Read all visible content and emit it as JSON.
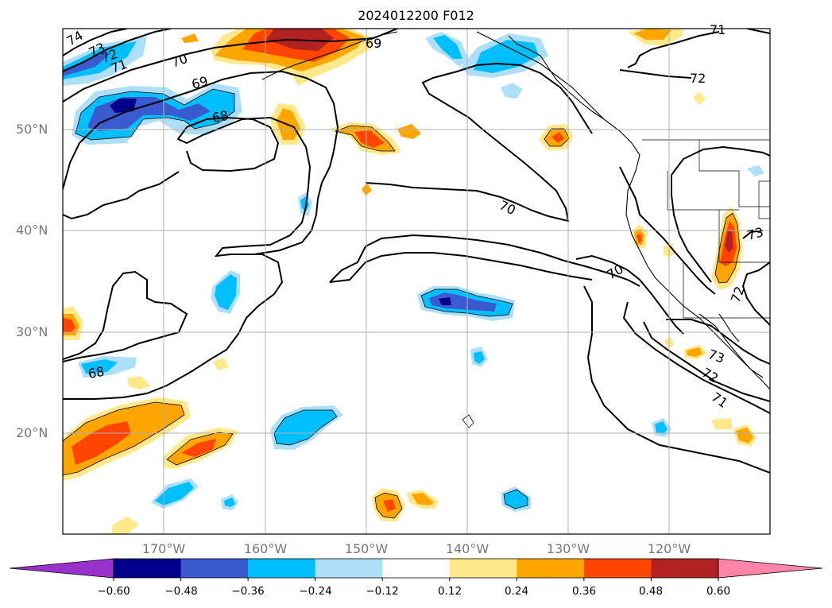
{
  "title": "2024012200 F012",
  "latitude_labels": [
    "50°N",
    "40°N",
    "30°N",
    "20°N"
  ],
  "longitude_labels": [
    "170°W",
    "160°W",
    "150°W",
    "140°W",
    "130°W",
    "120°W"
  ],
  "contour_labels": [
    "74",
    "73",
    "72",
    "71",
    "70",
    "69",
    "68",
    "69",
    "71",
    "72",
    "70",
    "70",
    "68",
    "73",
    "72",
    "73",
    "72",
    "71"
  ],
  "colorbar": {
    "ticks": [
      "−0.60",
      "−0.48",
      "−0.36",
      "−0.24",
      "−0.12",
      "0.12",
      "0.24",
      "0.36",
      "0.48",
      "0.60"
    ],
    "colors": [
      "#9932cc",
      "#00008b",
      "#3a5bd0",
      "#00bfff",
      "#ade0f8",
      "#ffffff",
      "#ffe88a",
      "#ffa500",
      "#ff4500",
      "#b22222",
      "#ff85a8"
    ]
  },
  "anomaly_colors": {
    "neg_strong": "#00008b",
    "neg_mid": "#3a5bd0",
    "neg": "#00bfff",
    "neg_weak": "#ade0f8",
    "pos_weak": "#ffe88a",
    "pos": "#ffa500",
    "pos_mid": "#ff4500",
    "pos_strong": "#b22222"
  }
}
